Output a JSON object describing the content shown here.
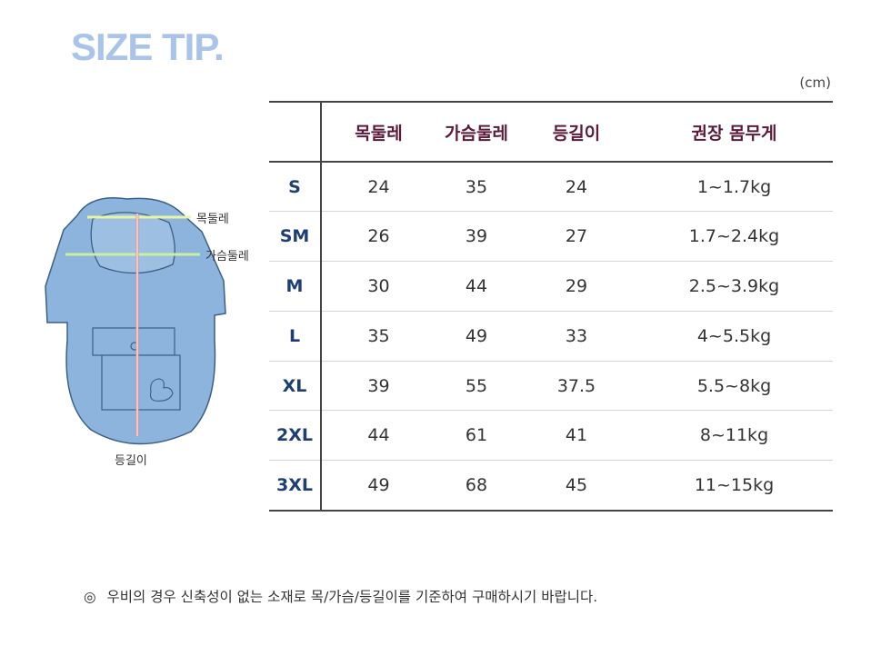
{
  "title": "SIZE TIP.",
  "unit": "(cm)",
  "illustration": {
    "labels": {
      "neck": "목둘레",
      "chest": "가슴둘레",
      "back": "등길이"
    },
    "colors": {
      "garment": "#8db4dc",
      "outline": "#3b5f86",
      "neck_line": "#e8f5a4",
      "chest_line": "#c9f0a0",
      "back_line": "#f08a8a"
    }
  },
  "table": {
    "headers": [
      "",
      "목둘레",
      "가슴둘레",
      "등길이",
      "권장 몸무게"
    ],
    "rows": [
      [
        "S",
        "24",
        "35",
        "24",
        "1~1.7kg"
      ],
      [
        "SM",
        "26",
        "39",
        "27",
        "1.7~2.4kg"
      ],
      [
        "M",
        "30",
        "44",
        "29",
        "2.5~3.9kg"
      ],
      [
        "L",
        "35",
        "49",
        "33",
        "4~5.5kg"
      ],
      [
        "XL",
        "39",
        "55",
        "37.5",
        "5.5~8kg"
      ],
      [
        "2XL",
        "44",
        "61",
        "41",
        "8~11kg"
      ],
      [
        "3XL",
        "49",
        "68",
        "45",
        "11~15kg"
      ]
    ]
  },
  "note": {
    "mark": "◎",
    "text": "우비의 경우 신축성이 없는 소재로 목/가슴/등길이를 기준하여 구매하시기 바랍니다."
  }
}
